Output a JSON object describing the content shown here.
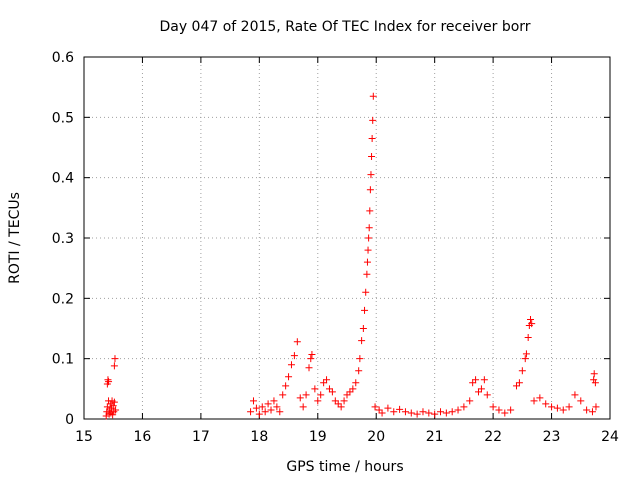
{
  "chart_data": {
    "type": "scatter",
    "title": "Day 047 of 2015, Rate Of TEC Index for receiver borr",
    "xlabel": "GPS time / hours",
    "ylabel": "ROTI / TECUs",
    "xlim": [
      15,
      24
    ],
    "ylim": [
      0,
      0.6
    ],
    "xticks": [
      "15",
      "16",
      "17",
      "18",
      "19",
      "20",
      "21",
      "22",
      "23",
      "24"
    ],
    "yticks": [
      "0",
      "0.1",
      "0.2",
      "0.3",
      "0.4",
      "0.5",
      "0.6"
    ],
    "grid": true,
    "marker": "+",
    "color": "#ff0000",
    "series": [
      {
        "name": "ROTI",
        "points": [
          [
            15.38,
            0.005
          ],
          [
            15.39,
            0.012
          ],
          [
            15.4,
            0.02
          ],
          [
            15.4,
            0.058
          ],
          [
            15.41,
            0.065
          ],
          [
            15.42,
            0.062
          ],
          [
            15.42,
            0.03
          ],
          [
            15.43,
            0.008
          ],
          [
            15.44,
            0.015
          ],
          [
            15.45,
            0.025
          ],
          [
            15.46,
            0.01
          ],
          [
            15.47,
            0.018
          ],
          [
            15.48,
            0.03
          ],
          [
            15.49,
            0.007
          ],
          [
            15.5,
            0.022
          ],
          [
            15.51,
            0.012
          ],
          [
            15.52,
            0.028
          ],
          [
            15.52,
            0.088
          ],
          [
            15.53,
            0.1
          ],
          [
            15.54,
            0.015
          ],
          [
            17.85,
            0.012
          ],
          [
            17.9,
            0.03
          ],
          [
            17.95,
            0.018
          ],
          [
            18.0,
            0.008
          ],
          [
            18.05,
            0.02
          ],
          [
            18.1,
            0.012
          ],
          [
            18.15,
            0.025
          ],
          [
            18.2,
            0.015
          ],
          [
            18.25,
            0.03
          ],
          [
            18.3,
            0.02
          ],
          [
            18.35,
            0.012
          ],
          [
            18.4,
            0.04
          ],
          [
            18.45,
            0.055
          ],
          [
            18.5,
            0.07
          ],
          [
            18.55,
            0.09
          ],
          [
            18.6,
            0.105
          ],
          [
            18.65,
            0.128
          ],
          [
            18.7,
            0.035
          ],
          [
            18.75,
            0.02
          ],
          [
            18.8,
            0.04
          ],
          [
            18.85,
            0.085
          ],
          [
            18.88,
            0.1
          ],
          [
            18.9,
            0.107
          ],
          [
            18.95,
            0.05
          ],
          [
            19.0,
            0.03
          ],
          [
            19.05,
            0.04
          ],
          [
            19.1,
            0.06
          ],
          [
            19.15,
            0.065
          ],
          [
            19.2,
            0.05
          ],
          [
            19.25,
            0.045
          ],
          [
            19.3,
            0.03
          ],
          [
            19.35,
            0.025
          ],
          [
            19.4,
            0.02
          ],
          [
            19.45,
            0.03
          ],
          [
            19.5,
            0.04
          ],
          [
            19.55,
            0.045
          ],
          [
            19.6,
            0.05
          ],
          [
            19.65,
            0.06
          ],
          [
            19.7,
            0.08
          ],
          [
            19.72,
            0.1
          ],
          [
            19.75,
            0.13
          ],
          [
            19.78,
            0.15
          ],
          [
            19.8,
            0.18
          ],
          [
            19.82,
            0.21
          ],
          [
            19.84,
            0.24
          ],
          [
            19.85,
            0.26
          ],
          [
            19.86,
            0.28
          ],
          [
            19.87,
            0.3
          ],
          [
            19.88,
            0.317
          ],
          [
            19.89,
            0.345
          ],
          [
            19.9,
            0.38
          ],
          [
            19.91,
            0.405
          ],
          [
            19.92,
            0.435
          ],
          [
            19.93,
            0.465
          ],
          [
            19.94,
            0.495
          ],
          [
            19.95,
            0.535
          ],
          [
            19.98,
            0.02
          ],
          [
            20.05,
            0.015
          ],
          [
            20.1,
            0.01
          ],
          [
            20.2,
            0.018
          ],
          [
            20.3,
            0.012
          ],
          [
            20.4,
            0.016
          ],
          [
            20.5,
            0.012
          ],
          [
            20.6,
            0.01
          ],
          [
            20.7,
            0.008
          ],
          [
            20.8,
            0.012
          ],
          [
            20.9,
            0.01
          ],
          [
            21.0,
            0.008
          ],
          [
            21.1,
            0.012
          ],
          [
            21.2,
            0.01
          ],
          [
            21.3,
            0.012
          ],
          [
            21.4,
            0.015
          ],
          [
            21.5,
            0.02
          ],
          [
            21.6,
            0.03
          ],
          [
            21.65,
            0.06
          ],
          [
            21.7,
            0.065
          ],
          [
            21.75,
            0.045
          ],
          [
            21.8,
            0.05
          ],
          [
            21.85,
            0.065
          ],
          [
            21.9,
            0.04
          ],
          [
            22.0,
            0.02
          ],
          [
            22.1,
            0.015
          ],
          [
            22.2,
            0.01
          ],
          [
            22.3,
            0.015
          ],
          [
            22.4,
            0.055
          ],
          [
            22.45,
            0.06
          ],
          [
            22.5,
            0.08
          ],
          [
            22.55,
            0.1
          ],
          [
            22.57,
            0.108
          ],
          [
            22.6,
            0.135
          ],
          [
            22.62,
            0.155
          ],
          [
            22.64,
            0.165
          ],
          [
            22.66,
            0.158
          ],
          [
            22.7,
            0.03
          ],
          [
            22.8,
            0.035
          ],
          [
            22.9,
            0.025
          ],
          [
            23.0,
            0.02
          ],
          [
            23.1,
            0.018
          ],
          [
            23.2,
            0.015
          ],
          [
            23.3,
            0.02
          ],
          [
            23.4,
            0.04
          ],
          [
            23.5,
            0.03
          ],
          [
            23.6,
            0.015
          ],
          [
            23.7,
            0.012
          ],
          [
            23.72,
            0.065
          ],
          [
            23.73,
            0.075
          ],
          [
            23.75,
            0.06
          ],
          [
            23.76,
            0.02
          ]
        ]
      }
    ]
  }
}
